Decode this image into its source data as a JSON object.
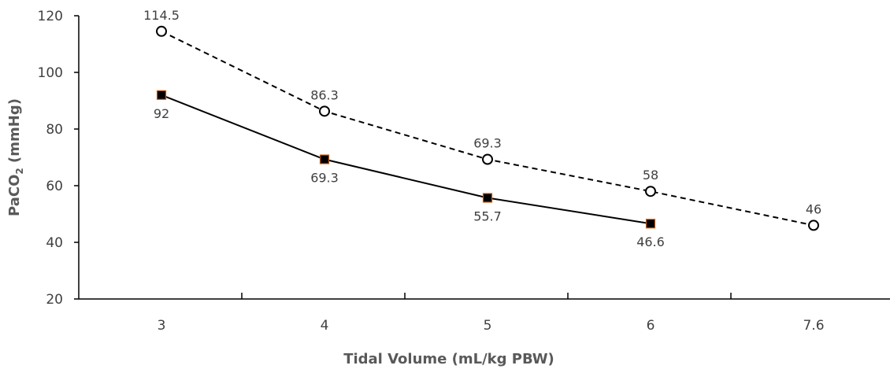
{
  "chart_data": {
    "type": "line",
    "categories": [
      "3",
      "4",
      "5",
      "6",
      "7.6"
    ],
    "xlabel": "Tidal Volume (mL/kg PBW)",
    "ylabel_parts": {
      "main": "PaCO",
      "sub": "2",
      "rest": " (mmHg)"
    },
    "ylim": [
      20,
      120
    ],
    "yticks": [
      20,
      40,
      60,
      80,
      100,
      120
    ],
    "grid": false,
    "legend": "none",
    "series": [
      {
        "style": "dashed",
        "marker": "open-circle",
        "color": "#000000",
        "values": [
          114.5,
          86.3,
          69.3,
          58,
          46
        ],
        "labels": [
          "114.5",
          "86.3",
          "69.3",
          "58",
          "46"
        ],
        "label_position": "above"
      },
      {
        "style": "solid",
        "marker": "filled-square",
        "color": "#000000",
        "marker_edge_color": "#c55a11",
        "values": [
          92,
          69.3,
          55.7,
          46.6,
          null
        ],
        "labels": [
          "92",
          "69.3",
          "55.7",
          "46.6",
          ""
        ],
        "label_position": "below"
      }
    ]
  }
}
